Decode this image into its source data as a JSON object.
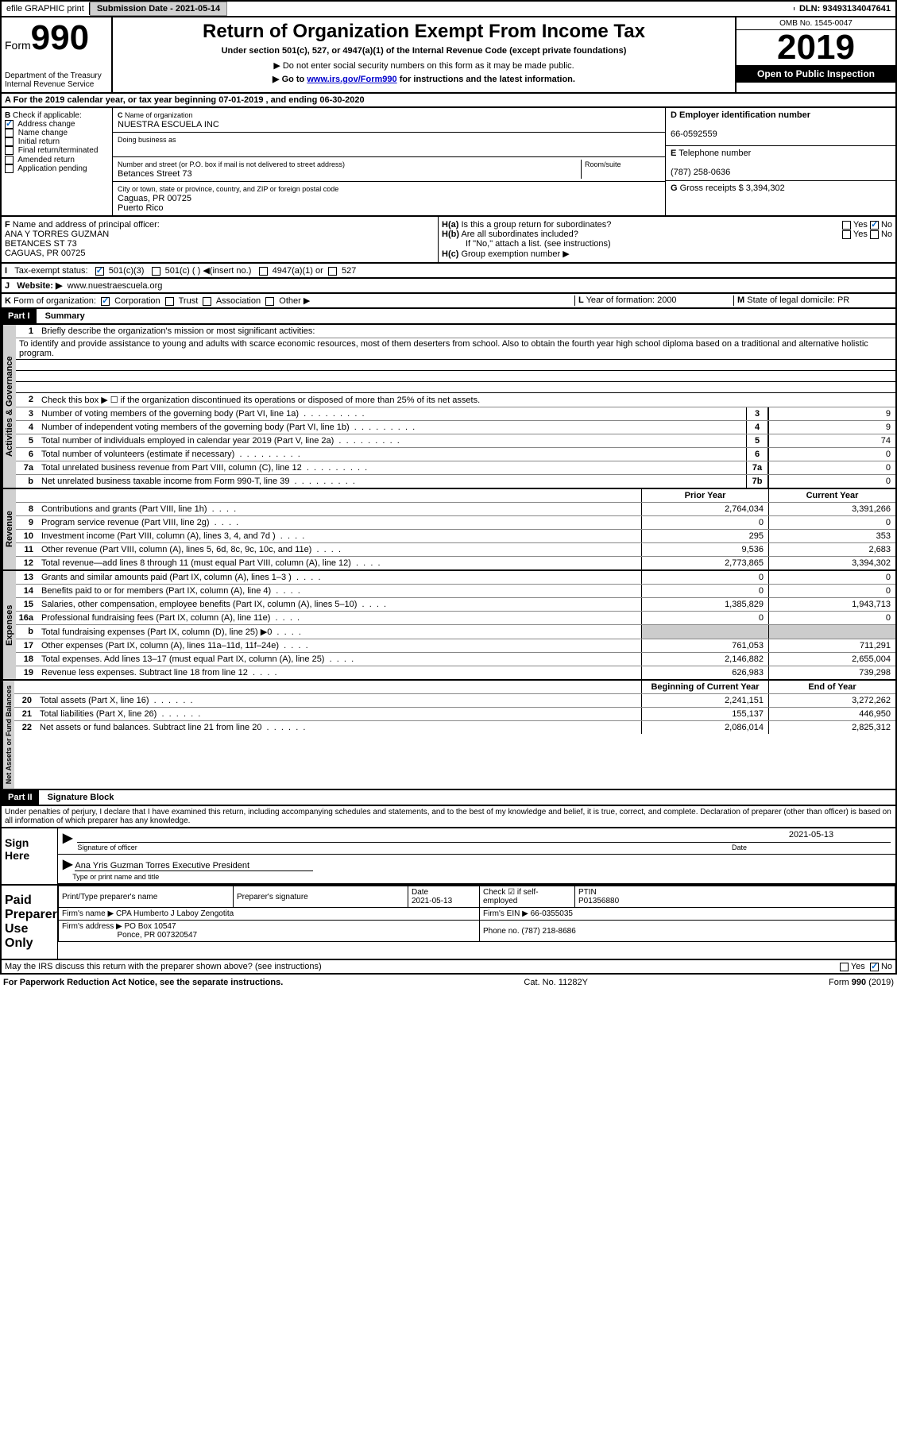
{
  "topbar": {
    "efile": "efile GRAPHIC print",
    "submission_label": "Submission Date - 2021-05-14",
    "dln_label": "DLN: 93493134047641"
  },
  "header": {
    "form_label": "Form",
    "form_number": "990",
    "dept": "Department of the Treasury",
    "irs": "Internal Revenue Service",
    "title": "Return of Organization Exempt From Income Tax",
    "subtitle": "Under section 501(c), 527, or 4947(a)(1) of the Internal Revenue Code (except private foundations)",
    "note1": "▶ Do not enter social security numbers on this form as it may be made public.",
    "note2_pre": "▶ Go to ",
    "note2_link": "www.irs.gov/Form990",
    "note2_post": " for instructions and the latest information.",
    "omb": "OMB No. 1545-0047",
    "year": "2019",
    "inspection": "Open to Public Inspection"
  },
  "line_a": "For the 2019 calendar year, or tax year beginning 07-01-2019    , and ending 06-30-2020",
  "section_b": {
    "label": "Check if applicable:",
    "items": [
      "Address change",
      "Name change",
      "Initial return",
      "Final return/terminated",
      "Amended return",
      "Application pending"
    ],
    "checked_idx": 0
  },
  "section_c": {
    "name_label": "Name of organization",
    "name": "NUESTRA ESCUELA INC",
    "dba_label": "Doing business as",
    "addr_label": "Number and street (or P.O. box if mail is not delivered to street address)",
    "room_label": "Room/suite",
    "addr": "Betances Street 73",
    "city_label": "City or town, state or province, country, and ZIP or foreign postal code",
    "city": "Caguas, PR  00725",
    "country": "Puerto Rico"
  },
  "section_d": {
    "ein_label": "Employer identification number",
    "ein": "66-0592559",
    "phone_label": "Telephone number",
    "phone": "(787) 258-0636",
    "gross_label": "Gross receipts $",
    "gross": "3,394,302"
  },
  "section_f": {
    "label": "Name and address of principal officer:",
    "name": "ANA Y TORRES GUZMAN",
    "addr1": "BETANCES ST 73",
    "addr2": "CAGUAS, PR  00725"
  },
  "section_h": {
    "ha": "Is this a group return for subordinates?",
    "hb": "Are all subordinates included?",
    "hb_note": "If \"No,\" attach a list. (see instructions)",
    "hc": "Group exemption number ▶",
    "yes": "Yes",
    "no": "No"
  },
  "tax_exempt": {
    "label": "Tax-exempt status:",
    "opts": [
      "501(c)(3)",
      "501(c) (  ) ◀(insert no.)",
      "4947(a)(1) or",
      "527"
    ]
  },
  "website": {
    "label": "Website: ▶",
    "value": "www.nuestraescuela.org"
  },
  "line_k": {
    "label": "Form of organization:",
    "opts": [
      "Corporation",
      "Trust",
      "Association",
      "Other ▶"
    ]
  },
  "line_l": {
    "label": "Year of formation:",
    "value": "2000"
  },
  "line_m": {
    "label": "State of legal domicile:",
    "value": "PR"
  },
  "part1": {
    "header": "Part I",
    "title": "Summary",
    "q1": "Briefly describe the organization's mission or most significant activities:",
    "mission": "To identify and provide assistance to young and adults with scarce economic resources, most of them deserters from school. Also to obtain the fourth year high school diploma based on a traditional and alternative holistic program.",
    "q2": "Check this box ▶ ☐  if the organization discontinued its operations or disposed of more than 25% of its net assets.",
    "governance_tab": "Activities & Governance",
    "revenue_tab": "Revenue",
    "expenses_tab": "Expenses",
    "netassets_tab": "Net Assets or Fund Balances",
    "lines_gov": [
      {
        "n": "3",
        "t": "Number of voting members of the governing body (Part VI, line 1a)",
        "box": "3",
        "v": "9"
      },
      {
        "n": "4",
        "t": "Number of independent voting members of the governing body (Part VI, line 1b)",
        "box": "4",
        "v": "9"
      },
      {
        "n": "5",
        "t": "Total number of individuals employed in calendar year 2019 (Part V, line 2a)",
        "box": "5",
        "v": "74"
      },
      {
        "n": "6",
        "t": "Total number of volunteers (estimate if necessary)",
        "box": "6",
        "v": "0"
      },
      {
        "n": "7a",
        "t": "Total unrelated business revenue from Part VIII, column (C), line 12",
        "box": "7a",
        "v": "0"
      },
      {
        "n": "b",
        "t": "Net unrelated business taxable income from Form 990-T, line 39",
        "box": "7b",
        "v": "0"
      }
    ],
    "col_prior": "Prior Year",
    "col_current": "Current Year",
    "lines_rev": [
      {
        "n": "8",
        "t": "Contributions and grants (Part VIII, line 1h)",
        "p": "2,764,034",
        "c": "3,391,266"
      },
      {
        "n": "9",
        "t": "Program service revenue (Part VIII, line 2g)",
        "p": "0",
        "c": "0"
      },
      {
        "n": "10",
        "t": "Investment income (Part VIII, column (A), lines 3, 4, and 7d )",
        "p": "295",
        "c": "353"
      },
      {
        "n": "11",
        "t": "Other revenue (Part VIII, column (A), lines 5, 6d, 8c, 9c, 10c, and 11e)",
        "p": "9,536",
        "c": "2,683"
      },
      {
        "n": "12",
        "t": "Total revenue—add lines 8 through 11 (must equal Part VIII, column (A), line 12)",
        "p": "2,773,865",
        "c": "3,394,302"
      }
    ],
    "lines_exp": [
      {
        "n": "13",
        "t": "Grants and similar amounts paid (Part IX, column (A), lines 1–3 )",
        "p": "0",
        "c": "0"
      },
      {
        "n": "14",
        "t": "Benefits paid to or for members (Part IX, column (A), line 4)",
        "p": "0",
        "c": "0"
      },
      {
        "n": "15",
        "t": "Salaries, other compensation, employee benefits (Part IX, column (A), lines 5–10)",
        "p": "1,385,829",
        "c": "1,943,713"
      },
      {
        "n": "16a",
        "t": "Professional fundraising fees (Part IX, column (A), line 11e)",
        "p": "0",
        "c": "0"
      },
      {
        "n": "b",
        "t": "Total fundraising expenses (Part IX, column (D), line 25) ▶0",
        "p": "",
        "c": "",
        "shade": true
      },
      {
        "n": "17",
        "t": "Other expenses (Part IX, column (A), lines 11a–11d, 11f–24e)",
        "p": "761,053",
        "c": "711,291"
      },
      {
        "n": "18",
        "t": "Total expenses. Add lines 13–17 (must equal Part IX, column (A), line 25)",
        "p": "2,146,882",
        "c": "2,655,004"
      },
      {
        "n": "19",
        "t": "Revenue less expenses. Subtract line 18 from line 12",
        "p": "626,983",
        "c": "739,298"
      }
    ],
    "col_begin": "Beginning of Current Year",
    "col_end": "End of Year",
    "lines_net": [
      {
        "n": "20",
        "t": "Total assets (Part X, line 16)",
        "p": "2,241,151",
        "c": "3,272,262"
      },
      {
        "n": "21",
        "t": "Total liabilities (Part X, line 26)",
        "p": "155,137",
        "c": "446,950"
      },
      {
        "n": "22",
        "t": "Net assets or fund balances. Subtract line 21 from line 20",
        "p": "2,086,014",
        "c": "2,825,312"
      }
    ]
  },
  "part2": {
    "header": "Part II",
    "title": "Signature Block",
    "penalty": "Under penalties of perjury, I declare that I have examined this return, including accompanying schedules and statements, and to the best of my knowledge and belief, it is true, correct, and complete. Declaration of preparer (other than officer) is based on all information of which preparer has any knowledge.",
    "sign_here": "Sign Here",
    "sig_officer": "Signature of officer",
    "date_label": "Date",
    "sig_date": "2021-05-13",
    "officer_name": "Ana Yris Guzman Torres  Executive President",
    "type_name": "Type or print name and title",
    "paid_prep": "Paid Preparer Use Only",
    "prep_name_label": "Print/Type preparer's name",
    "prep_sig_label": "Preparer's signature",
    "prep_date": "2021-05-13",
    "check_self": "Check ☑ if self-employed",
    "ptin_label": "PTIN",
    "ptin": "P01356880",
    "firm_name_label": "Firm's name    ▶",
    "firm_name": "CPA Humberto J Laboy Zengotita",
    "firm_ein_label": "Firm's EIN ▶",
    "firm_ein": "66-0355035",
    "firm_addr_label": "Firm's address ▶",
    "firm_addr1": "PO Box 10547",
    "firm_addr2": "Ponce, PR  007320547",
    "firm_phone_label": "Phone no.",
    "firm_phone": "(787) 218-8686",
    "discuss": "May the IRS discuss this return with the preparer shown above? (see instructions)"
  },
  "footer": {
    "paperwork": "For Paperwork Reduction Act Notice, see the separate instructions.",
    "cat": "Cat. No. 11282Y",
    "form": "Form 990 (2019)"
  }
}
